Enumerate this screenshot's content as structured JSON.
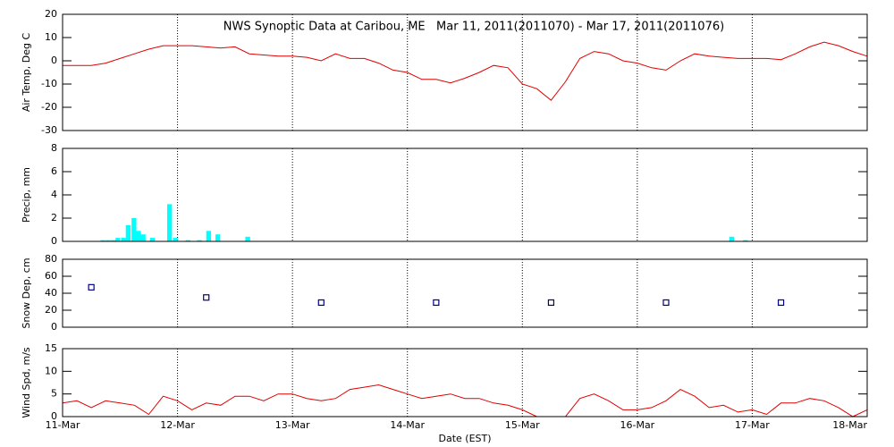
{
  "chart_data": [
    {
      "type": "line",
      "title": "NWS Synoptic Data at Caribou, ME   Mar 11, 2011(2011070) - Mar 17, 2011(2011076)",
      "ylabel": "Air Temp, Deg C",
      "color": "#e00000",
      "ylim": [
        -30,
        20
      ],
      "yticks": [
        -30,
        -20,
        -10,
        0,
        10,
        20
      ],
      "x": [
        0,
        0.125,
        0.25,
        0.375,
        0.5,
        0.625,
        0.75,
        0.875,
        1,
        1.125,
        1.25,
        1.375,
        1.5,
        1.625,
        1.75,
        1.875,
        2,
        2.125,
        2.25,
        2.375,
        2.5,
        2.625,
        2.75,
        2.875,
        3,
        3.125,
        3.25,
        3.375,
        3.5,
        3.625,
        3.75,
        3.875,
        4,
        4.125,
        4.25,
        4.375,
        4.5,
        4.625,
        4.75,
        4.875,
        5,
        5.125,
        5.25,
        5.375,
        5.5,
        5.625,
        5.75,
        5.875,
        6,
        6.125,
        6.25,
        6.375,
        6.5,
        6.625,
        6.75,
        6.875,
        7
      ],
      "values": [
        -2,
        -2,
        -2,
        -1,
        1,
        3,
        5,
        6.5,
        6.5,
        6.5,
        6,
        5.5,
        6,
        3,
        2.5,
        2,
        2,
        1.5,
        0,
        3,
        1,
        1,
        -1,
        -4,
        -5,
        -8,
        -8,
        -9.5,
        -7.5,
        -5,
        -2,
        -3,
        -10,
        -12,
        -17,
        -9,
        1,
        4,
        3,
        0,
        -1,
        -3,
        -4,
        0,
        3,
        2,
        1.5,
        1,
        1,
        1,
        0.5,
        3,
        6,
        8,
        6.5,
        4,
        2
      ]
    },
    {
      "type": "bar",
      "ylabel": "Precip, mm",
      "color": "#00ffff",
      "ylim": [
        0,
        8
      ],
      "yticks": [
        0,
        2,
        4,
        6,
        8
      ],
      "x": [
        0.33,
        0.375,
        0.42,
        0.46,
        0.51,
        0.55,
        0.6,
        0.64,
        0.68,
        0.76,
        0.91,
        0.96,
        1.07,
        1.17,
        1.25,
        1.33,
        1.59,
        5.8,
        5.92
      ],
      "values": [
        0.1,
        0.1,
        0.1,
        0.3,
        0.3,
        1.4,
        2.0,
        0.9,
        0.6,
        0.3,
        3.2,
        0.3,
        0.1,
        0.1,
        0.9,
        0.6,
        0.4,
        0.4,
        0.1
      ]
    },
    {
      "type": "scatter",
      "ylabel": "Snow Dep, cm",
      "color": "#00008b",
      "ylim": [
        0,
        80
      ],
      "yticks": [
        0,
        20,
        40,
        60,
        80
      ],
      "x": [
        0.25,
        1.25,
        2.25,
        3.25,
        4.25,
        5.25,
        6.25
      ],
      "values": [
        47,
        35,
        29,
        29,
        29,
        29,
        29
      ]
    },
    {
      "type": "line",
      "ylabel": "Wind Spd, m/s",
      "xlabel": "Date (EST)",
      "color": "#e00000",
      "ylim": [
        0,
        15
      ],
      "yticks": [
        0,
        5,
        10,
        15
      ],
      "xlim": [
        0,
        7
      ],
      "xticks": [
        {
          "value": 0,
          "label": "11-Mar"
        },
        {
          "value": 1,
          "label": "12-Mar"
        },
        {
          "value": 2,
          "label": "13-Mar"
        },
        {
          "value": 3,
          "label": "14-Mar"
        },
        {
          "value": 4,
          "label": "15-Mar"
        },
        {
          "value": 5,
          "label": "16-Mar"
        },
        {
          "value": 6,
          "label": "17-Mar"
        },
        {
          "value": 7,
          "label": "18-Mar"
        }
      ],
      "x": [
        0,
        0.125,
        0.25,
        0.375,
        0.5,
        0.625,
        0.75,
        0.875,
        1,
        1.125,
        1.25,
        1.375,
        1.5,
        1.625,
        1.75,
        1.875,
        2,
        2.125,
        2.25,
        2.375,
        2.5,
        2.625,
        2.75,
        2.875,
        3,
        3.125,
        3.25,
        3.375,
        3.5,
        3.625,
        3.75,
        3.875,
        4,
        4.125,
        4.25,
        4.375,
        4.5,
        4.625,
        4.75,
        4.875,
        5,
        5.125,
        5.25,
        5.375,
        5.5,
        5.625,
        5.75,
        5.875,
        6,
        6.125,
        6.25,
        6.375,
        6.5,
        6.625,
        6.75,
        6.875,
        7
      ],
      "values": [
        3,
        3.5,
        2,
        3.5,
        3,
        2.5,
        0.5,
        4.5,
        3.5,
        1.5,
        3,
        2.5,
        4.5,
        4.5,
        3.5,
        5,
        5,
        4,
        3.5,
        4,
        6,
        6.5,
        7,
        6,
        5,
        4,
        4.5,
        5,
        4,
        4,
        3,
        2.5,
        1.5,
        0,
        0,
        0,
        4,
        5,
        3.5,
        1.5,
        1.5,
        2,
        3.5,
        6,
        4.5,
        2,
        2.5,
        1,
        1.5,
        0.5,
        3,
        3,
        4,
        3.5,
        2,
        0,
        1.5
      ]
    }
  ]
}
